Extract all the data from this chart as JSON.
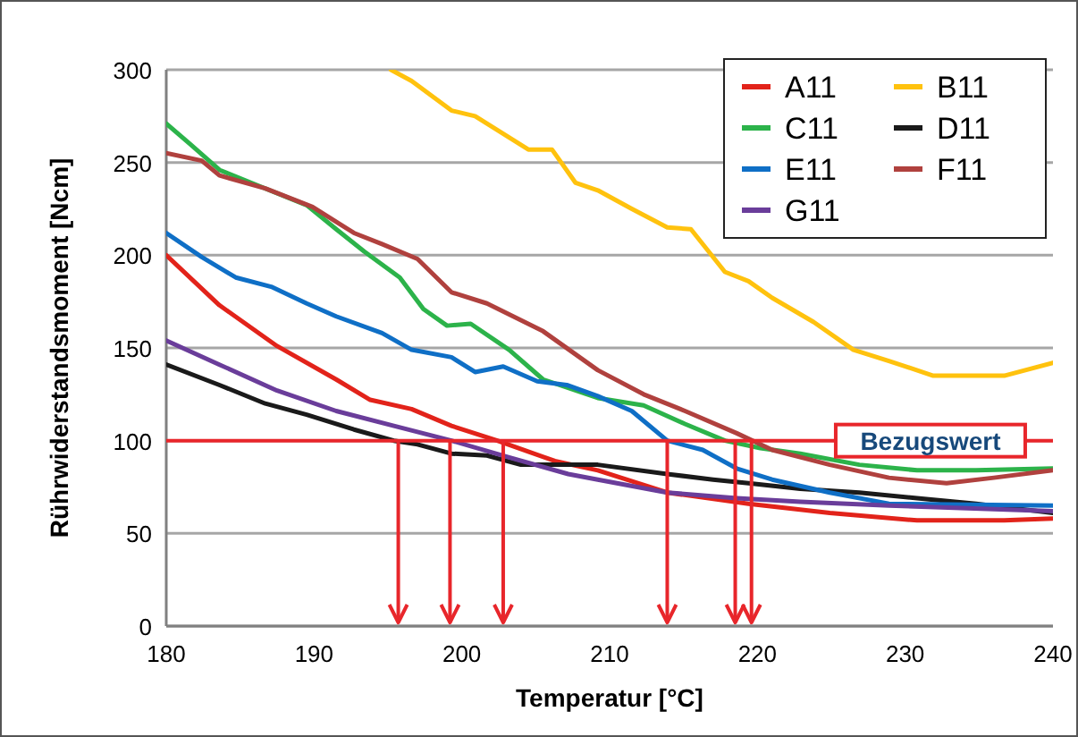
{
  "chart_data": {
    "type": "line",
    "xlabel": "Temperatur [°C]",
    "ylabel": "Rührwiderstandsmoment [Ncm]",
    "xlim": [
      180,
      240
    ],
    "ylim": [
      0,
      300
    ],
    "xticks": [
      180,
      190,
      200,
      210,
      220,
      230,
      240
    ],
    "yticks": [
      0,
      50,
      100,
      150,
      200,
      250,
      300
    ],
    "grid": "y",
    "legend": "top right",
    "line_style": "solid",
    "marker": "none",
    "ref_lines": [
      {
        "axis": "y",
        "value": 100,
        "label": "Bezugswert",
        "color": "#e8262b"
      },
      {
        "axis": "x",
        "value": 195.7,
        "color": "#e8262b"
      },
      {
        "axis": "x",
        "value": 199.2,
        "color": "#e8262b"
      },
      {
        "axis": "x",
        "value": 202.8,
        "color": "#e8262b"
      },
      {
        "axis": "x",
        "value": 213.9,
        "color": "#e8262b"
      },
      {
        "axis": "x",
        "value": 218.5,
        "color": "#e8262b"
      },
      {
        "axis": "x",
        "value": 219.6,
        "color": "#e8262b"
      }
    ],
    "series": [
      {
        "name": "A11",
        "color": "#e2231a",
        "x": [
          180,
          183.6,
          187.5,
          191.5,
          193.8,
          196.6,
          199.3,
          202.4,
          206.3,
          209.2,
          213.9,
          219.4,
          224.9,
          230.8,
          236.7,
          240
        ],
        "values": [
          200,
          173,
          151,
          133,
          122,
          117,
          108,
          100,
          89,
          84,
          72,
          66,
          61,
          57,
          57,
          58
        ]
      },
      {
        "name": "B11",
        "color": "#ffc20e",
        "x": [
          195.2,
          196.6,
          199.3,
          200.9,
          204.5,
          206.1,
          207.7,
          209.2,
          211.5,
          213.9,
          215.5,
          217.8,
          219.4,
          221,
          223.8,
          226.5,
          228.9,
          231.9,
          233.5,
          236.7,
          240
        ],
        "values": [
          300,
          294,
          278,
          275,
          257,
          257,
          239,
          235,
          225,
          215,
          214,
          191,
          186,
          177,
          164,
          149,
          143,
          135,
          135,
          135,
          142
        ]
      },
      {
        "name": "C11",
        "color": "#2cb34a",
        "x": [
          180,
          181.6,
          183.6,
          186.7,
          189.5,
          191.5,
          193.4,
          195.8,
          197.4,
          199,
          200.6,
          203.2,
          205.5,
          209.2,
          212.3,
          215.1,
          217.8,
          220.2,
          222.9,
          226.9,
          230.8,
          234.8,
          240
        ],
        "values": [
          271,
          260,
          246,
          236,
          227,
          214,
          202,
          188,
          171,
          162,
          163,
          149,
          133,
          123,
          119,
          109,
          100,
          96,
          93,
          87,
          84,
          84,
          85
        ]
      },
      {
        "name": "D11",
        "color": "#1a1a1a",
        "x": [
          180,
          183.6,
          186.7,
          189.5,
          192.7,
          195.4,
          197,
          199.3,
          201.7,
          204,
          207.2,
          209.2,
          213.9,
          217,
          219.4,
          222.9,
          226.9,
          230.8,
          234.8,
          240
        ],
        "values": [
          141,
          130,
          120,
          114,
          106,
          100,
          98,
          93,
          92,
          87,
          87,
          87,
          82,
          79,
          77,
          74,
          72,
          69,
          66,
          61
        ]
      },
      {
        "name": "E11",
        "color": "#0f6fc6",
        "x": [
          180,
          182.4,
          184.7,
          187.1,
          189.5,
          191.5,
          194.6,
          196.6,
          199.3,
          200.9,
          202.8,
          205.1,
          207.1,
          209.2,
          211.5,
          213.9,
          216.3,
          218.6,
          221,
          224.9,
          228.9,
          240
        ],
        "values": [
          212,
          199,
          188,
          183,
          174,
          167,
          158,
          149,
          145,
          137,
          140,
          132,
          130,
          124,
          116,
          100,
          95,
          85,
          79,
          72,
          66,
          65
        ]
      },
      {
        "name": "F11",
        "color": "#b0413e",
        "x": [
          180,
          182.4,
          183.6,
          186.7,
          189.9,
          192.7,
          194.6,
          197,
          199.3,
          201.7,
          205.5,
          209.2,
          212.3,
          215.1,
          218.6,
          221,
          224.9,
          228.9,
          232.8,
          236,
          240
        ],
        "values": [
          255,
          251,
          243,
          236,
          226,
          212,
          206,
          198,
          180,
          174,
          159,
          138,
          125,
          116,
          104,
          95,
          87,
          80,
          77,
          80,
          84
        ]
      },
      {
        "name": "G11",
        "color": "#6a3d9a",
        "x": [
          180,
          183.6,
          187.5,
          191.5,
          195.4,
          199.3,
          203.2,
          207.2,
          209.2,
          213.9,
          218.6,
          222.9,
          228.9,
          240
        ],
        "values": [
          154,
          141,
          127,
          116,
          108,
          100,
          91,
          82,
          79,
          72,
          69,
          67,
          65,
          62
        ]
      }
    ]
  }
}
